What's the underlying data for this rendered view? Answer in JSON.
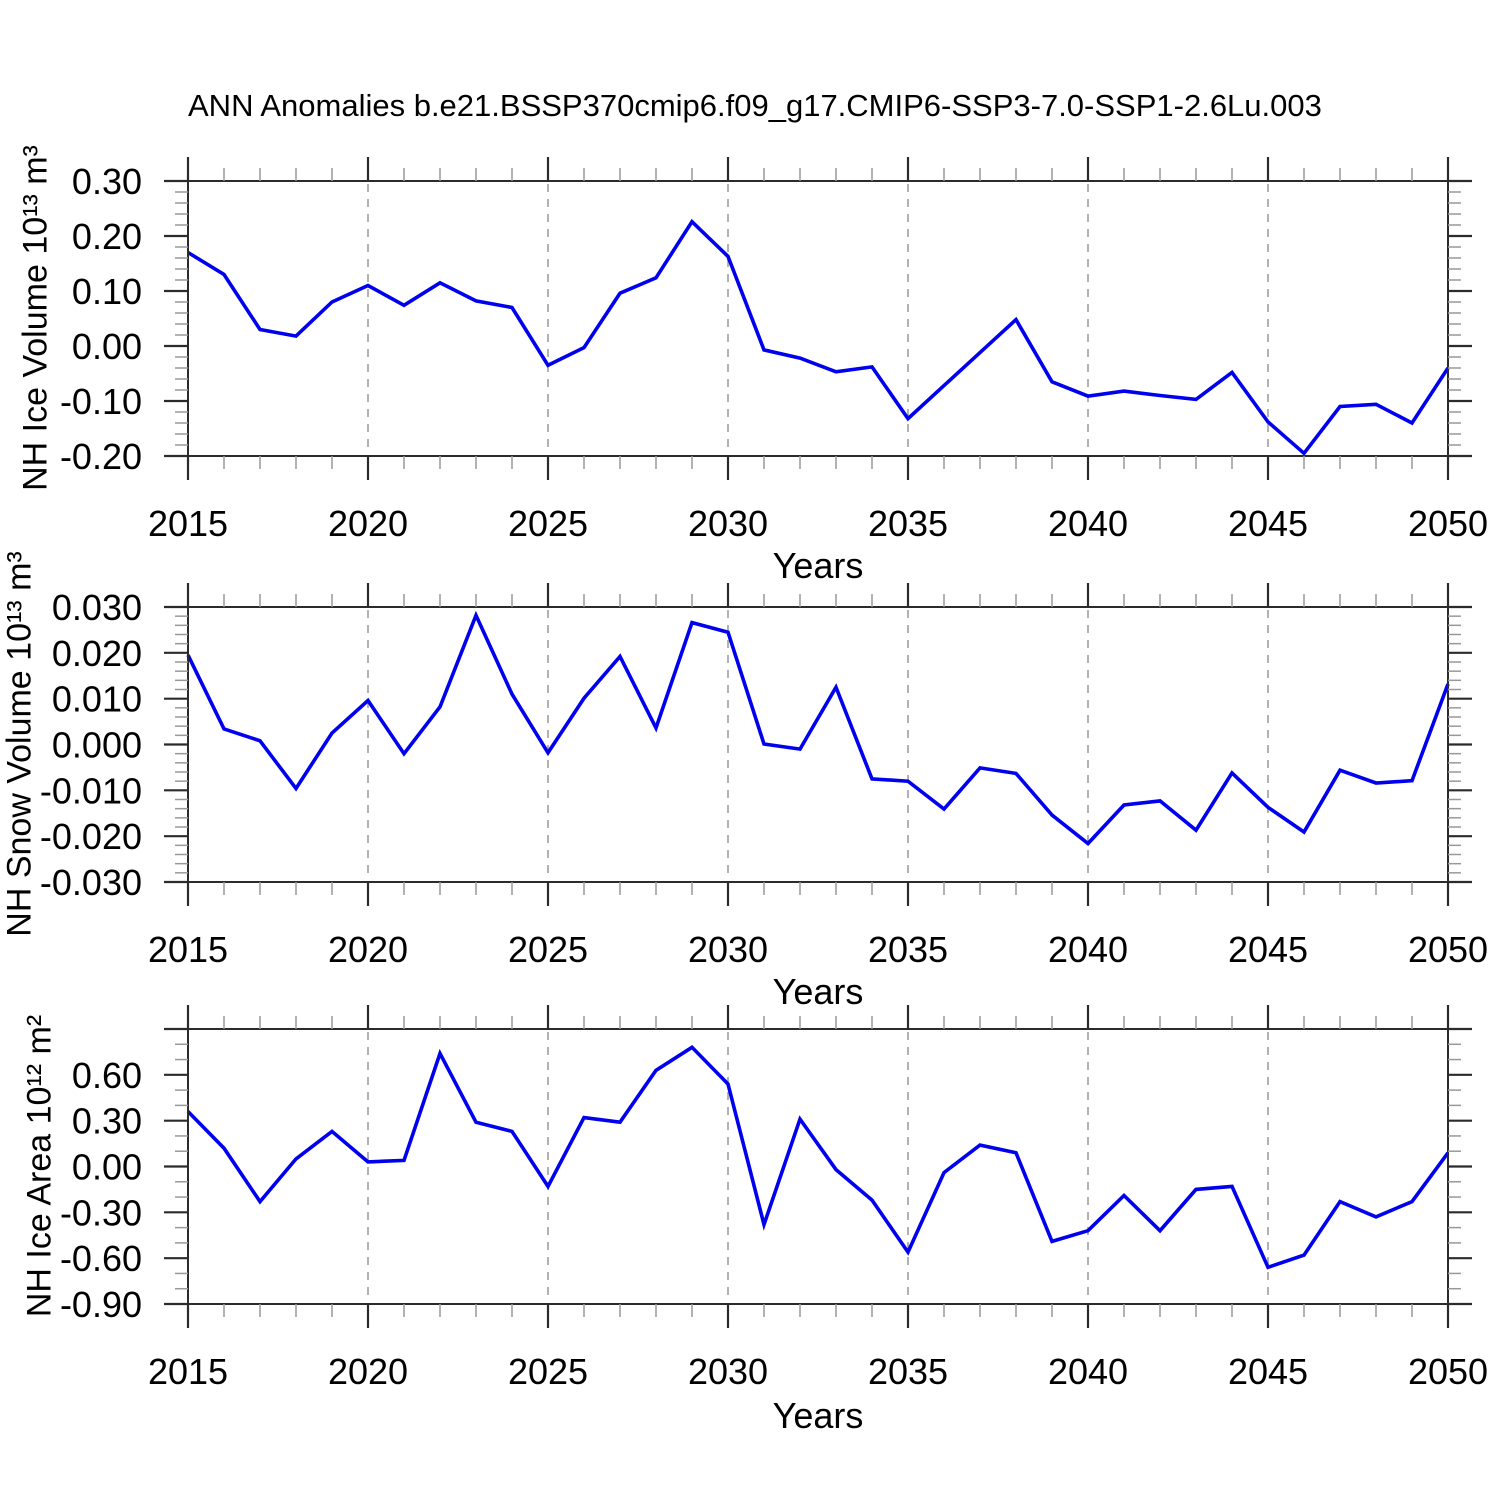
{
  "title": "ANN Anomalies b.e21.BSSP370cmip6.f09_g17.CMIP6-SSP3-7.0-SSP1-2.6Lu.003",
  "colors": {
    "line": "#0000ee",
    "grid": "#aaaaaa",
    "frame": "#2b2b2b",
    "minor_tick": "#999999",
    "text": "#000000"
  },
  "chart_data": [
    {
      "type": "line",
      "ylabel": "NH Ice Volume 10¹³ m³",
      "xlabel": "Years",
      "x": [
        2015,
        2016,
        2017,
        2018,
        2019,
        2020,
        2021,
        2022,
        2023,
        2024,
        2025,
        2026,
        2027,
        2028,
        2029,
        2030,
        2031,
        2032,
        2033,
        2034,
        2035,
        2036,
        2037,
        2038,
        2039,
        2040,
        2041,
        2042,
        2043,
        2044,
        2045,
        2046,
        2047,
        2048,
        2049,
        2050
      ],
      "values": [
        0.17,
        0.13,
        0.03,
        0.018,
        0.08,
        0.11,
        0.074,
        0.115,
        0.082,
        0.07,
        -0.035,
        -0.003,
        0.096,
        0.124,
        0.226,
        0.163,
        -0.007,
        -0.022,
        -0.047,
        -0.038,
        -0.132,
        -0.072,
        -0.012,
        0.048,
        -0.065,
        -0.091,
        -0.082,
        -0.09,
        -0.097,
        -0.048,
        -0.138,
        -0.195,
        -0.11,
        -0.106,
        -0.14,
        -0.04
      ],
      "xlim": [
        2015,
        2050
      ],
      "ylim": [
        -0.2,
        0.3
      ],
      "xticks": [
        2015,
        2020,
        2025,
        2030,
        2035,
        2040,
        2045,
        2050
      ],
      "xtick_labels": [
        "2015",
        "2020",
        "2025",
        "2030",
        "2035",
        "2040",
        "2045",
        "2050"
      ],
      "xtick_minor_step": 1,
      "xtick_major_step": 5,
      "ytick_major_step": 0.1,
      "ytick_minor_step": 0.02,
      "ytick_labels": [
        {
          "value": 0.3,
          "label": "0.30"
        },
        {
          "value": 0.2,
          "label": "0.20"
        },
        {
          "value": 0.1,
          "label": "0.10"
        },
        {
          "value": 0.0,
          "label": "0.00"
        },
        {
          "value": -0.1,
          "label": "-0.10"
        },
        {
          "value": -0.2,
          "label": "-0.20"
        }
      ],
      "grid_x": [
        2020,
        2025,
        2030,
        2035,
        2040,
        2045
      ],
      "grid_style": "dashed-vertical"
    },
    {
      "type": "line",
      "ylabel": "NH Snow Volume 10¹³ m³",
      "xlabel": "Years",
      "x": [
        2015,
        2016,
        2017,
        2018,
        2019,
        2020,
        2021,
        2022,
        2023,
        2024,
        2025,
        2026,
        2027,
        2028,
        2029,
        2030,
        2031,
        2032,
        2033,
        2034,
        2035,
        2036,
        2037,
        2038,
        2039,
        2040,
        2041,
        2042,
        2043,
        2044,
        2045,
        2046,
        2047,
        2048,
        2049,
        2050
      ],
      "values": [
        0.0195,
        0.0034,
        0.0008,
        -0.0096,
        0.0025,
        0.0096,
        -0.002,
        0.0082,
        0.0282,
        0.011,
        -0.0018,
        0.0101,
        0.0192,
        0.0036,
        0.0266,
        0.0245,
        0.0001,
        -0.001,
        0.0125,
        -0.0075,
        -0.008,
        -0.0141,
        -0.0051,
        -0.0063,
        -0.0154,
        -0.0216,
        -0.0132,
        -0.0123,
        -0.0187,
        -0.0062,
        -0.0137,
        -0.0191,
        -0.0056,
        -0.0084,
        -0.0079,
        0.0132
      ],
      "xlim": [
        2015,
        2050
      ],
      "ylim": [
        -0.03,
        0.03
      ],
      "xticks": [
        2015,
        2020,
        2025,
        2030,
        2035,
        2040,
        2045,
        2050
      ],
      "xtick_labels": [
        "2015",
        "2020",
        "2025",
        "2030",
        "2035",
        "2040",
        "2045",
        "2050"
      ],
      "xtick_minor_step": 1,
      "xtick_major_step": 5,
      "ytick_major_step": 0.01,
      "ytick_minor_step": 0.002,
      "ytick_labels": [
        {
          "value": 0.03,
          "label": "0.030"
        },
        {
          "value": 0.02,
          "label": "0.020"
        },
        {
          "value": 0.01,
          "label": "0.010"
        },
        {
          "value": 0.0,
          "label": "0.000"
        },
        {
          "value": -0.01,
          "label": "-0.010"
        },
        {
          "value": -0.02,
          "label": "-0.020"
        },
        {
          "value": -0.03,
          "label": "-0.030"
        }
      ],
      "grid_x": [
        2020,
        2025,
        2030,
        2035,
        2040,
        2045
      ],
      "grid_style": "dashed-vertical"
    },
    {
      "type": "line",
      "ylabel": "NH Ice Area 10¹² m²",
      "xlabel": "Years",
      "x": [
        2015,
        2016,
        2017,
        2018,
        2019,
        2020,
        2021,
        2022,
        2023,
        2024,
        2025,
        2026,
        2027,
        2028,
        2029,
        2030,
        2031,
        2032,
        2033,
        2034,
        2035,
        2036,
        2037,
        2038,
        2039,
        2040,
        2041,
        2042,
        2043,
        2044,
        2045,
        2046,
        2047,
        2048,
        2049,
        2050
      ],
      "values": [
        0.36,
        0.12,
        -0.23,
        0.05,
        0.23,
        0.03,
        0.04,
        0.74,
        0.29,
        0.23,
        -0.13,
        0.32,
        0.29,
        0.63,
        0.78,
        0.54,
        -0.38,
        0.31,
        -0.02,
        -0.22,
        -0.56,
        -0.04,
        0.14,
        0.09,
        -0.49,
        -0.42,
        -0.19,
        -0.42,
        -0.15,
        -0.13,
        -0.66,
        -0.58,
        -0.23,
        -0.33,
        -0.23,
        0.09
      ],
      "xlim": [
        2015,
        2050
      ],
      "ylim": [
        -0.9,
        0.9
      ],
      "xticks": [
        2015,
        2020,
        2025,
        2030,
        2035,
        2040,
        2045,
        2050
      ],
      "xtick_labels": [
        "2015",
        "2020",
        "2025",
        "2030",
        "2035",
        "2040",
        "2045",
        "2050"
      ],
      "xtick_minor_step": 1,
      "xtick_major_step": 5,
      "ytick_major_step": 0.3,
      "ytick_minor_step": 0.1,
      "ytick_labels": [
        {
          "value": 0.6,
          "label": "0.60"
        },
        {
          "value": 0.3,
          "label": "0.30"
        },
        {
          "value": 0.0,
          "label": "0.00"
        },
        {
          "value": -0.3,
          "label": "-0.30"
        },
        {
          "value": -0.6,
          "label": "-0.60"
        },
        {
          "value": -0.9,
          "label": "-0.90"
        }
      ],
      "grid_x": [
        2020,
        2025,
        2030,
        2035,
        2040,
        2045
      ],
      "grid_style": "dashed-vertical"
    }
  ]
}
